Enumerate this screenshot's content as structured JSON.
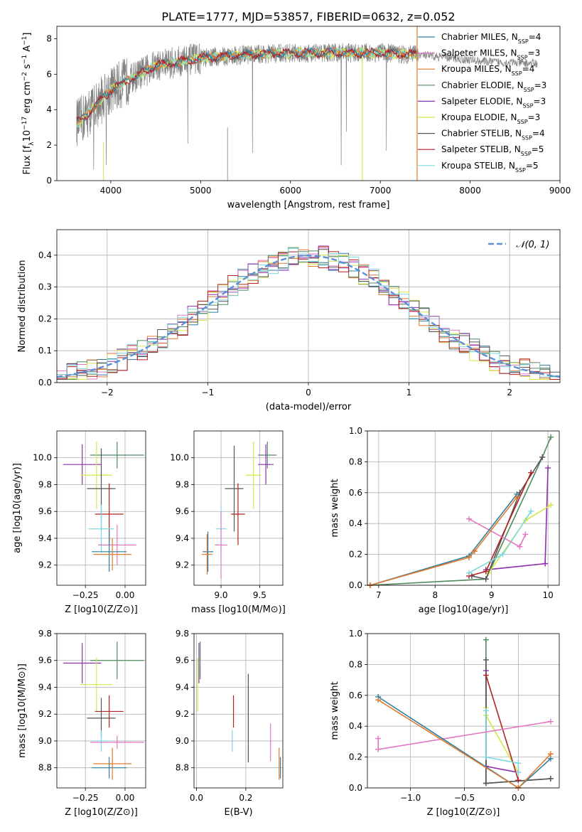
{
  "title": "PLATE=1777, MJD=53857, FIBERID=0632, z=0.052",
  "colors": {
    "Chabrier MILES": "#2f7f9f",
    "Salpeter MILES": "#e377c2",
    "Kroupa MILES": "#e07a2f",
    "Chabrier ELODIE": "#4f8a5f",
    "Salpeter ELODIE": "#8e2fae",
    "Kroupa ELODIE": "#d4e84a",
    "Chabrier STELIB": "#555555",
    "Salpeter STELIB": "#b22222",
    "Kroupa STELIB": "#7fd8e0",
    "MILES-grey": "#808080",
    "gauss": "#5b8fd6"
  },
  "chart_data": [
    {
      "id": "spectrum",
      "type": "line",
      "xlabel": "wavelength [Angstrom, rest frame]",
      "ylabel": "Flux [f_λ 10^-17 erg cm^-2 s^-1 A^-1]",
      "xlim": [
        3400,
        9000
      ],
      "ylim": [
        0,
        8.7
      ],
      "xticks": [
        "4000",
        "5000",
        "6000",
        "7000",
        "8000",
        "9000"
      ],
      "yticks": [
        "0",
        "2",
        "4",
        "6",
        "8"
      ],
      "data_x": [
        3650,
        4000,
        4500,
        5000,
        5500,
        6000,
        6500,
        7000,
        7400,
        7800,
        8200,
        8700
      ],
      "data_y": [
        3.3,
        5.1,
        6.5,
        6.9,
        7.1,
        7.2,
        7.2,
        7.2,
        7.1,
        6.9,
        6.7,
        6.6
      ],
      "legend": [
        {
          "label": "Chabrier MILES, N",
          "sub": "SSP",
          "eq": "=4",
          "key": "Chabrier MILES"
        },
        {
          "label": "Salpeter MILES, N",
          "sub": "SSP",
          "eq": "=3",
          "key": "Salpeter MILES"
        },
        {
          "label": "Kroupa MILES, N",
          "sub": "SSP",
          "eq": "=4",
          "key": "Kroupa MILES"
        },
        {
          "label": "Chabrier ELODIE, N",
          "sub": "SSP",
          "eq": "=3",
          "key": "Chabrier ELODIE"
        },
        {
          "label": "Salpeter ELODIE, N",
          "sub": "SSP",
          "eq": "=3",
          "key": "Salpeter ELODIE"
        },
        {
          "label": "Kroupa ELODIE, N",
          "sub": "SSP",
          "eq": "=3",
          "key": "Kroupa ELODIE"
        },
        {
          "label": "Chabrier STELIB, N",
          "sub": "SSP",
          "eq": "=4",
          "key": "Chabrier STELIB"
        },
        {
          "label": "Salpeter STELIB, N",
          "sub": "SSP",
          "eq": "=5",
          "key": "Salpeter STELIB"
        },
        {
          "label": "Kroupa STELIB, N",
          "sub": "SSP",
          "eq": "=5",
          "key": "Kroupa STELIB"
        }
      ]
    },
    {
      "id": "residuals",
      "type": "bar",
      "xlabel": "(data-model)/error",
      "ylabel": "Normed distribution",
      "xlim": [
        -2.5,
        2.5
      ],
      "ylim": [
        0,
        0.48
      ],
      "xticks": [
        "−2",
        "−1",
        "0",
        "1",
        "2"
      ],
      "yticks": [
        "0.0",
        "0.1",
        "0.2",
        "0.3",
        "0.4"
      ],
      "gauss_label": "𝒩(0, 1)",
      "bin_width": 0.1
    },
    {
      "id": "z-age",
      "type": "scatter",
      "xlabel": "Z [log10(Z/Z⊙)]",
      "ylabel": "age  [log10(age/yr)]",
      "xlim": [
        -0.43,
        0.13
      ],
      "ylim": [
        9.05,
        10.2
      ],
      "xticks": [
        "−0.25",
        "0.00"
      ],
      "yticks": [
        "9.2",
        "9.4",
        "9.6",
        "9.8",
        "10.0"
      ],
      "points": [
        {
          "key": "Chabrier ELODIE",
          "x": -0.05,
          "y": 10.02,
          "xerr": 0.17,
          "yerr": 0.1
        },
        {
          "key": "Salpeter ELODIE",
          "x": -0.27,
          "y": 9.95,
          "xerr": 0.12,
          "yerr": 0.15
        },
        {
          "key": "Kroupa ELODIE",
          "x": -0.18,
          "y": 9.87,
          "xerr": 0.1,
          "yerr": 0.25
        },
        {
          "key": "Chabrier STELIB",
          "x": -0.15,
          "y": 9.77,
          "xerr": 0.09,
          "yerr": 0.3
        },
        {
          "key": "Salpeter STELIB",
          "x": -0.1,
          "y": 9.58,
          "xerr": 0.09,
          "yerr": 0.23
        },
        {
          "key": "Kroupa STELIB",
          "x": -0.15,
          "y": 9.47,
          "xerr": 0.08,
          "yerr": 0.18
        },
        {
          "key": "Salpeter MILES",
          "x": -0.05,
          "y": 9.35,
          "xerr": 0.12,
          "yerr": 0.15
        },
        {
          "key": "Chabrier MILES",
          "x": -0.1,
          "y": 9.3,
          "xerr": 0.11,
          "yerr": 0.15
        },
        {
          "key": "Kroupa MILES",
          "x": -0.08,
          "y": 9.28,
          "xerr": 0.12,
          "yerr": 0.12
        }
      ]
    },
    {
      "id": "mass-age",
      "type": "scatter",
      "xlabel": "mass [log10(M/M⊙)]",
      "ylabel": "",
      "xlim": [
        8.65,
        9.8
      ],
      "ylim": [
        9.05,
        10.2
      ],
      "xticks": [
        "9.0",
        "9.5"
      ],
      "yticks": [
        "9.2",
        "9.4",
        "9.6",
        "9.8",
        "10.0"
      ],
      "points": [
        {
          "key": "Chabrier ELODIE",
          "x": 9.6,
          "y": 10.02,
          "xerr": 0.12,
          "yerr": 0.1
        },
        {
          "key": "Salpeter ELODIE",
          "x": 9.58,
          "y": 9.95,
          "xerr": 0.1,
          "yerr": 0.15
        },
        {
          "key": "Kroupa ELODIE",
          "x": 9.42,
          "y": 9.87,
          "xerr": 0.1,
          "yerr": 0.25
        },
        {
          "key": "Chabrier STELIB",
          "x": 9.17,
          "y": 9.77,
          "xerr": 0.12,
          "yerr": 0.32
        },
        {
          "key": "Salpeter STELIB",
          "x": 9.22,
          "y": 9.58,
          "xerr": 0.09,
          "yerr": 0.23
        },
        {
          "key": "Kroupa STELIB",
          "x": 9.0,
          "y": 9.47,
          "xerr": 0.07,
          "yerr": 0.18
        },
        {
          "key": "Salpeter MILES",
          "x": 9.0,
          "y": 9.35,
          "xerr": 0.08,
          "yerr": 0.25
        },
        {
          "key": "Chabrier MILES",
          "x": 8.83,
          "y": 9.3,
          "xerr": 0.07,
          "yerr": 0.15
        },
        {
          "key": "Kroupa MILES",
          "x": 8.82,
          "y": 9.28,
          "xerr": 0.07,
          "yerr": 0.15
        }
      ]
    },
    {
      "id": "age-weight",
      "type": "line",
      "xlabel": "age  [log10(age/yr)]",
      "ylabel": "mass weight",
      "xlim": [
        6.8,
        10.2
      ],
      "ylim": [
        0,
        1.0
      ],
      "xticks": [
        "7",
        "8",
        "9",
        "10"
      ],
      "yticks": [
        "0.0",
        "0.2",
        "0.4",
        "0.6",
        "0.8",
        "1.0"
      ],
      "series": [
        {
          "key": "Chabrier ELODIE",
          "x": [
            6.85,
            8.9,
            9.9,
            10.05
          ],
          "y": [
            0.0,
            0.04,
            0.83,
            0.96
          ]
        },
        {
          "key": "Salpeter ELODIE",
          "x": [
            8.9,
            9.95,
            10.0
          ],
          "y": [
            0.1,
            0.14,
            0.76
          ]
        },
        {
          "key": "Kroupa ELODIE",
          "x": [
            8.95,
            9.6,
            10.05
          ],
          "y": [
            0.08,
            0.42,
            0.52
          ]
        },
        {
          "key": "Chabrier STELIB",
          "x": [
            8.65,
            8.9,
            9.5,
            9.9
          ],
          "y": [
            0.06,
            0.04,
            0.6,
            0.83
          ]
        },
        {
          "key": "Salpeter STELIB",
          "x": [
            8.6,
            8.9,
            9.7
          ],
          "y": [
            0.06,
            0.09,
            0.73
          ]
        },
        {
          "key": "Kroupa STELIB",
          "x": [
            8.6,
            9.2,
            9.7
          ],
          "y": [
            0.08,
            0.2,
            0.48
          ]
        },
        {
          "key": "Salpeter MILES",
          "x": [
            8.6,
            9.5,
            9.6
          ],
          "y": [
            0.43,
            0.25,
            0.33
          ]
        },
        {
          "key": "Chabrier MILES",
          "x": [
            6.85,
            8.6,
            9.45
          ],
          "y": [
            0.0,
            0.19,
            0.59
          ]
        },
        {
          "key": "Kroupa MILES",
          "x": [
            6.85,
            8.6,
            8.7,
            9.45
          ],
          "y": [
            0.0,
            0.18,
            0.22,
            0.57
          ]
        }
      ]
    },
    {
      "id": "z-mass",
      "type": "scatter",
      "xlabel": "Z [log10(Z/Z⊙)]",
      "ylabel": "mass [log10(M/M⊙)]",
      "xlim": [
        -0.43,
        0.13
      ],
      "ylim": [
        8.65,
        9.8
      ],
      "xticks": [
        "−0.25",
        "0.00"
      ],
      "yticks": [
        "8.8",
        "9.0",
        "9.2",
        "9.4",
        "9.6",
        "9.8"
      ],
      "points": [
        {
          "key": "Chabrier ELODIE",
          "x": -0.05,
          "y": 9.6,
          "xerr": 0.17,
          "yerr": 0.14
        },
        {
          "key": "Salpeter ELODIE",
          "x": -0.27,
          "y": 9.58,
          "xerr": 0.12,
          "yerr": 0.15
        },
        {
          "key": "Kroupa ELODIE",
          "x": -0.18,
          "y": 9.42,
          "xerr": 0.1,
          "yerr": 0.2
        },
        {
          "key": "Chabrier STELIB",
          "x": -0.15,
          "y": 9.17,
          "xerr": 0.09,
          "yerr": 0.15
        },
        {
          "key": "Salpeter STELIB",
          "x": -0.1,
          "y": 9.22,
          "xerr": 0.09,
          "yerr": 0.12
        },
        {
          "key": "Kroupa STELIB",
          "x": -0.15,
          "y": 9.0,
          "xerr": 0.06,
          "yerr": 0.08
        },
        {
          "key": "Salpeter MILES",
          "x": -0.05,
          "y": 8.99,
          "xerr": 0.17,
          "yerr": 0.05
        },
        {
          "key": "Chabrier MILES",
          "x": -0.1,
          "y": 8.8,
          "xerr": 0.11,
          "yerr": 0.08
        },
        {
          "key": "Kroupa MILES",
          "x": -0.08,
          "y": 8.83,
          "xerr": 0.12,
          "yerr": 0.12
        }
      ]
    },
    {
      "id": "ebv-mass",
      "type": "scatter",
      "xlabel": "E(B-V)",
      "ylabel": "",
      "xlim": [
        -0.01,
        0.35
      ],
      "ylim": [
        8.65,
        9.8
      ],
      "xticks": [
        "0.0",
        "0.2"
      ],
      "yticks": [
        "8.8",
        "9.0",
        "9.2",
        "9.4",
        "9.6",
        "9.8"
      ],
      "points": [
        {
          "key": "Chabrier ELODIE",
          "x": 0.015,
          "y": 9.6,
          "yerr": 0.14
        },
        {
          "key": "Salpeter ELODIE",
          "x": 0.01,
          "y": 9.58,
          "yerr": 0.15
        },
        {
          "key": "Kroupa ELODIE",
          "x": 0.005,
          "y": 9.42,
          "yerr": 0.2
        },
        {
          "key": "Chabrier STELIB",
          "x": 0.21,
          "y": 9.17,
          "yerr": 0.33
        },
        {
          "key": "Salpeter STELIB",
          "x": 0.15,
          "y": 9.22,
          "yerr": 0.12
        },
        {
          "key": "Kroupa STELIB",
          "x": 0.145,
          "y": 9.0,
          "yerr": 0.08
        },
        {
          "key": "Salpeter MILES",
          "x": 0.3,
          "y": 8.99,
          "yerr": 0.14
        },
        {
          "key": "Chabrier MILES",
          "x": 0.34,
          "y": 8.8,
          "yerr": 0.08
        },
        {
          "key": "Kroupa MILES",
          "x": 0.335,
          "y": 8.83,
          "yerr": 0.12
        }
      ]
    },
    {
      "id": "z-weight",
      "type": "line",
      "xlabel": "Z [log10(Z/Z⊙)]",
      "ylabel": "mass weight",
      "xlim": [
        -1.4,
        0.38
      ],
      "ylim": [
        0,
        1.0
      ],
      "xticks": [
        "−1.0",
        "−0.5",
        "0.0"
      ],
      "yticks": [
        "0.0",
        "0.2",
        "0.4",
        "0.6",
        "0.8",
        "1.0"
      ],
      "series": [
        {
          "key": "Chabrier ELODIE",
          "x": [
            -0.3,
            -0.3,
            0.3
          ],
          "y": [
            0.96,
            0.03,
            0.06
          ]
        },
        {
          "key": "Salpeter ELODIE",
          "x": [
            -0.3,
            -0.3,
            0.0
          ],
          "y": [
            0.76,
            0.14,
            0.1
          ]
        },
        {
          "key": "Kroupa ELODIE",
          "x": [
            -0.3,
            -0.3,
            0.0
          ],
          "y": [
            0.52,
            0.47,
            0.1
          ]
        },
        {
          "key": "Chabrier STELIB",
          "x": [
            -0.3,
            -0.3,
            0.3
          ],
          "y": [
            0.83,
            0.03,
            0.06
          ]
        },
        {
          "key": "Salpeter STELIB",
          "x": [
            -0.3,
            0.0
          ],
          "y": [
            0.73,
            0.05
          ]
        },
        {
          "key": "Kroupa STELIB",
          "x": [
            -0.3,
            -0.3,
            0.0,
            0.0
          ],
          "y": [
            0.5,
            0.2,
            0.16,
            0.1
          ]
        },
        {
          "key": "Salpeter MILES",
          "x": [
            -1.3,
            -1.3,
            0.3
          ],
          "y": [
            0.32,
            0.25,
            0.43
          ]
        },
        {
          "key": "Chabrier MILES",
          "x": [
            -1.3,
            0.0,
            0.3
          ],
          "y": [
            0.59,
            0.0,
            0.19
          ]
        },
        {
          "key": "Kroupa MILES",
          "x": [
            -1.3,
            0.0,
            0.3
          ],
          "y": [
            0.57,
            0.0,
            0.22
          ]
        }
      ]
    }
  ]
}
